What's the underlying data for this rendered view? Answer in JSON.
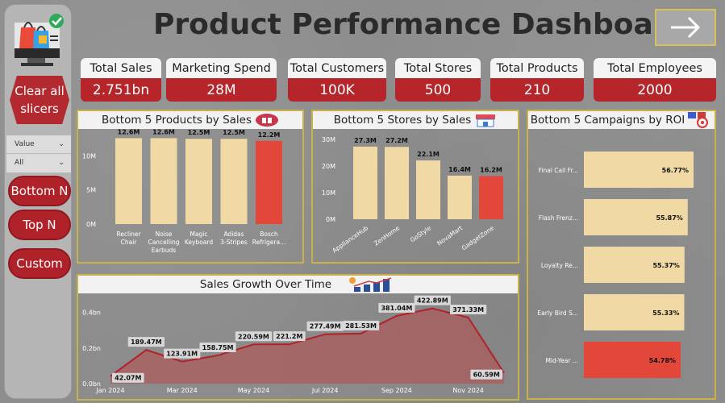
{
  "header": {
    "title": "Product Performance Dashboard"
  },
  "sidebar": {
    "clear_label": "Clear all slicers",
    "slicer": {
      "label": "Value",
      "selected": "All"
    },
    "buttons": [
      "Bottom N",
      "Top N",
      "Custom"
    ]
  },
  "kpis": [
    {
      "label": "Total Sales",
      "value": "2.751bn"
    },
    {
      "label": "Marketing Spend",
      "value": "28M"
    },
    {
      "label": "Total Customers",
      "value": "100K"
    },
    {
      "label": "Total Stores",
      "value": "500"
    },
    {
      "label": "Total Products",
      "value": "210"
    },
    {
      "label": "Total Employees",
      "value": "2000"
    }
  ],
  "colors": {
    "bar": "#f0d9a4",
    "highlight": "#e2473a",
    "accent": "#b5252a",
    "area": "#b84a4a"
  },
  "chart_data": [
    {
      "type": "bar",
      "title": "Bottom 5 Products by Sales",
      "categories": [
        "Recliner Chair",
        "Noise Cancelling Earbuds",
        "Magic Keyboard",
        "Adidas 3-Stripes",
        "Bosch Refrigera..."
      ],
      "values": [
        12.6,
        12.6,
        12.5,
        12.5,
        12.2
      ],
      "labels": [
        "12.6M",
        "12.6M",
        "12.5M",
        "12.5M",
        "12.2M"
      ],
      "yticks": [
        "0M",
        "5M",
        "10M"
      ],
      "ylim": [
        0,
        13
      ],
      "highlight_index": 4
    },
    {
      "type": "bar",
      "title": "Bottom 5 Stores by Sales",
      "categories": [
        "ApplianceHub",
        "ZenHome",
        "GoStyle",
        "NovaMart",
        "GadgetZone"
      ],
      "values": [
        27.3,
        27.2,
        22.1,
        16.4,
        16.2
      ],
      "labels": [
        "27.3M",
        "27.2M",
        "22.1M",
        "16.4M",
        "16.2M"
      ],
      "yticks": [
        "0M",
        "10M",
        "20M",
        "30M"
      ],
      "ylim": [
        0,
        30
      ],
      "highlight_index": 4
    },
    {
      "type": "bar",
      "orientation": "horizontal",
      "title": "Bottom 5 Campaigns by ROI",
      "categories": [
        "Final Call Fr...",
        "Flash Frenz...",
        "Loyalty Re...",
        "Early Bird S...",
        "Mid-Year ..."
      ],
      "values": [
        56.77,
        55.87,
        55.37,
        55.33,
        54.78
      ],
      "labels": [
        "56.77%",
        "55.87%",
        "55.37%",
        "55.33%",
        "54.78%"
      ],
      "highlight_index": 4
    },
    {
      "type": "area",
      "title": "Sales Growth Over Time",
      "x": [
        "Jan 2024",
        "Feb 2024",
        "Mar 2024",
        "Apr 2024",
        "May 2024",
        "Jun 2024",
        "Jul 2024",
        "Aug 2024",
        "Sep 2024",
        "Oct 2024",
        "Nov 2024",
        "Dec 2024"
      ],
      "values": [
        42.07,
        189.47,
        123.91,
        158.75,
        220.59,
        221.2,
        277.49,
        281.53,
        381.04,
        422.89,
        371.33,
        60.59
      ],
      "labels": [
        "42.07M",
        "189.47M",
        "123.91M",
        "158.75M",
        "220.59M",
        "221.2M",
        "277.49M",
        "281.53M",
        "381.04M",
        "422.89M",
        "371.33M",
        "60.59M"
      ],
      "xticks": [
        "Jan 2024",
        "Mar 2024",
        "May 2024",
        "Jul 2024",
        "Sep 2024",
        "Nov 2024"
      ],
      "yticks": [
        "0.0bn",
        "0.2bn",
        "0.4bn"
      ],
      "ylim": [
        0,
        480
      ]
    }
  ]
}
